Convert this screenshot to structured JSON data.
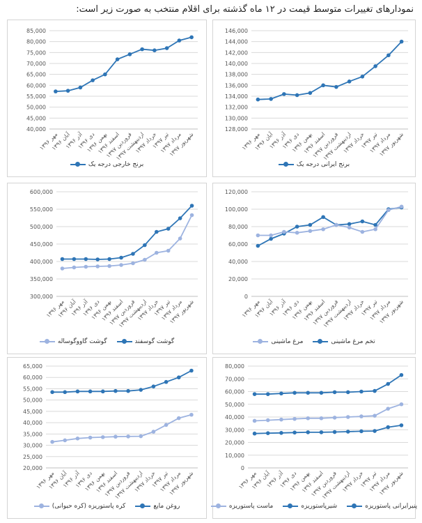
{
  "page": {
    "title": "نمودارهای تغییرات متوسط قیمت در ۱۲ ماه گذشته برای اقلام منتخب به صورت زیر است:"
  },
  "colors": {
    "dark": "#2E75B6",
    "light": "#9DB3E0",
    "grid": "#D9D9D9",
    "axis": "#BFBFBF"
  },
  "months": [
    "مهر ۱۳۹۶",
    "آبان ۱۳۹۶",
    "آذر ۱۳۹۶",
    "دی ۱۳۹۶",
    "بهمن ۱۳۹۶",
    "اسفند ۱۳۹۶",
    "فروردین ۱۳۹۷",
    "اردیبهشت ۱۳۹۷",
    "خرداد ۱۳۹۷",
    "تیر ۱۳۹۷",
    "مرداد ۱۳۹۷",
    "شهریور ۱۳۹۷"
  ],
  "chart_data": [
    {
      "id": "imported-rice",
      "type": "line",
      "ylim": [
        40000,
        85000
      ],
      "yticks": [
        "40,000",
        "45,000",
        "50,000",
        "55,000",
        "60,000",
        "65,000",
        "70,000",
        "75,000",
        "80,000",
        "85,000"
      ],
      "series": [
        {
          "name": "برنج خارجی درجه یک",
          "color": "dark",
          "values": [
            57200,
            57500,
            59000,
            62300,
            65000,
            71900,
            74200,
            76500,
            76000,
            77000,
            80500,
            82000
          ]
        }
      ]
    },
    {
      "id": "iranian-rice",
      "type": "line",
      "ylim": [
        128000,
        146000
      ],
      "yticks": [
        "128,000",
        "130,000",
        "132,000",
        "134,000",
        "136,000",
        "138,000",
        "140,000",
        "142,000",
        "144,000",
        "146,000"
      ],
      "series": [
        {
          "name": "برنج ایرانی درجه یک",
          "color": "dark",
          "values": [
            133400,
            133500,
            134400,
            134200,
            134600,
            136000,
            135700,
            136700,
            137600,
            139500,
            141500,
            144000
          ]
        }
      ]
    },
    {
      "id": "meat",
      "type": "line",
      "ylim": [
        300000,
        600000
      ],
      "yticks": [
        "300,000",
        "350,000",
        "400,000",
        "450,000",
        "500,000",
        "550,000",
        "600,000"
      ],
      "series": [
        {
          "name": "گوشت گوسفند",
          "color": "dark",
          "values": [
            407000,
            407000,
            407000,
            406000,
            407000,
            411000,
            422000,
            447000,
            485000,
            494000,
            524000,
            560000
          ]
        },
        {
          "name": "گوشت گاووگوساله",
          "color": "light",
          "values": [
            380000,
            383000,
            385000,
            386000,
            387000,
            390000,
            395000,
            405000,
            425000,
            431000,
            466000,
            533000
          ]
        }
      ]
    },
    {
      "id": "chicken-eggs",
      "type": "line",
      "ylim": [
        0,
        120000
      ],
      "yticks": [
        "0",
        "20,000",
        "40,000",
        "60,000",
        "80,000",
        "100,000",
        "120,000"
      ],
      "series": [
        {
          "name": "تخم مرغ ماشینی",
          "color": "dark",
          "values": [
            58000,
            66000,
            72000,
            80000,
            82000,
            91000,
            82000,
            83000,
            86000,
            82000,
            100000,
            102000
          ]
        },
        {
          "name": "مرغ ماشینی",
          "color": "light",
          "values": [
            70000,
            70000,
            74000,
            73000,
            75000,
            77000,
            82000,
            79000,
            74000,
            77000,
            99000,
            103000
          ]
        }
      ]
    },
    {
      "id": "oil-butter",
      "type": "line",
      "ylim": [
        20000,
        65000
      ],
      "yticks": [
        "20,000",
        "25,000",
        "30,000",
        "35,000",
        "40,000",
        "45,000",
        "50,000",
        "55,000",
        "60,000",
        "65,000"
      ],
      "series": [
        {
          "name": "روغن مایع",
          "color": "dark",
          "values": [
            53500,
            53500,
            53800,
            53800,
            53800,
            54000,
            54000,
            54500,
            56000,
            58000,
            60000,
            63000
          ]
        },
        {
          "name": "کره پاستوریزه (کره حیوانی)",
          "color": "light",
          "values": [
            31500,
            32200,
            33000,
            33400,
            33600,
            33800,
            33900,
            34000,
            36000,
            39000,
            42000,
            43500
          ]
        }
      ]
    },
    {
      "id": "dairy",
      "type": "line",
      "ylim": [
        0,
        80000
      ],
      "yticks": [
        "0",
        "10,000",
        "20,000",
        "30,000",
        "40,000",
        "50,000",
        "60,000",
        "70,000",
        "80,000"
      ],
      "series": [
        {
          "name": "پنیرایرانی پاستوریزه",
          "color": "dark",
          "values": [
            58000,
            58000,
            58500,
            59000,
            59000,
            59000,
            59500,
            59500,
            60000,
            60500,
            66000,
            73000
          ]
        },
        {
          "name": "شیرپاستوریزه",
          "color": "dark",
          "values": [
            27000,
            27300,
            27500,
            27800,
            28000,
            28000,
            28200,
            28500,
            28800,
            29000,
            32000,
            33500
          ]
        },
        {
          "name": "ماست پاستوریزه",
          "color": "light",
          "values": [
            37000,
            37500,
            38000,
            38500,
            39000,
            39000,
            39500,
            40000,
            40500,
            41000,
            46500,
            50000
          ]
        }
      ]
    }
  ]
}
